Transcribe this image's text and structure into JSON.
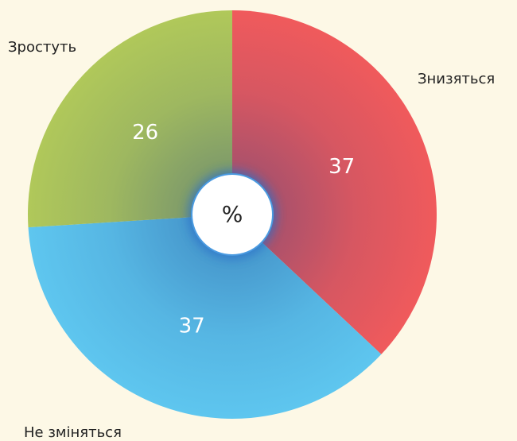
{
  "chart_data": {
    "type": "pie",
    "center_label": "%",
    "categories": [
      "Знизяться",
      "Не зміняться",
      "Зростуть"
    ],
    "values": [
      37,
      37,
      26
    ],
    "colors": [
      "#f05a5c",
      "#5ec6ef",
      "#b0c85a"
    ]
  }
}
